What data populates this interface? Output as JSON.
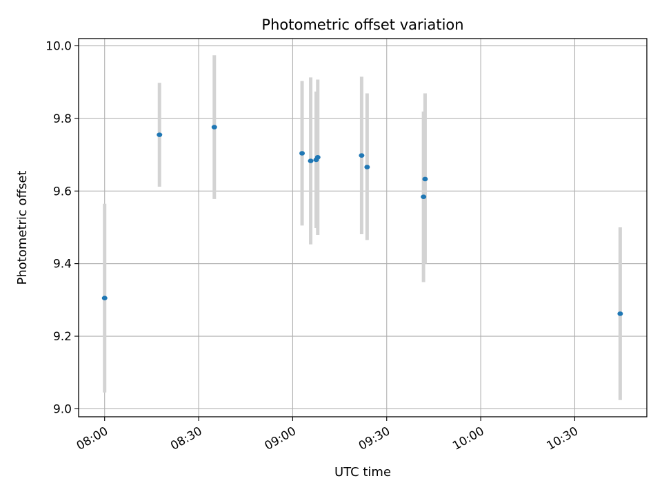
{
  "chart_data": {
    "type": "scatter",
    "title": "Photometric offset variation",
    "xlabel": "UTC time",
    "ylabel": "Photometric offset",
    "x_tick_labels": [
      "08:00",
      "08:30",
      "09:00",
      "09:30",
      "10:00",
      "10:30"
    ],
    "y_tick_labels": [
      "9.0",
      "9.2",
      "9.4",
      "9.6",
      "9.8",
      "10.0"
    ],
    "xlim": [
      "07:51:42",
      "10:53:00"
    ],
    "ylim": [
      8.978,
      10.02
    ],
    "grid": true,
    "points": [
      {
        "x": "08:00:00",
        "y": 9.305,
        "err_low": 9.045,
        "err_high": 9.565
      },
      {
        "x": "08:17:30",
        "y": 9.755,
        "err_low": 9.612,
        "err_high": 9.898
      },
      {
        "x": "08:35:00",
        "y": 9.776,
        "err_low": 9.578,
        "err_high": 9.974
      },
      {
        "x": "09:03:00",
        "y": 9.704,
        "err_low": 9.505,
        "err_high": 9.903
      },
      {
        "x": "09:05:45",
        "y": 9.683,
        "err_low": 9.453,
        "err_high": 9.913
      },
      {
        "x": "09:07:30",
        "y": 9.686,
        "err_low": 9.498,
        "err_high": 9.874
      },
      {
        "x": "09:08:00",
        "y": 9.693,
        "err_low": 9.479,
        "err_high": 9.907
      },
      {
        "x": "09:22:00",
        "y": 9.698,
        "err_low": 9.481,
        "err_high": 9.915
      },
      {
        "x": "09:23:45",
        "y": 9.666,
        "err_low": 9.465,
        "err_high": 9.869
      },
      {
        "x": "09:41:45",
        "y": 9.584,
        "err_low": 9.349,
        "err_high": 9.819
      },
      {
        "x": "09:42:15",
        "y": 9.633,
        "err_low": 9.4,
        "err_high": 9.869
      },
      {
        "x": "10:44:30",
        "y": 9.262,
        "err_low": 9.024,
        "err_high": 9.5
      }
    ],
    "marker_color": "#1f77b4",
    "errorbar_color": "#d3d3d3"
  }
}
